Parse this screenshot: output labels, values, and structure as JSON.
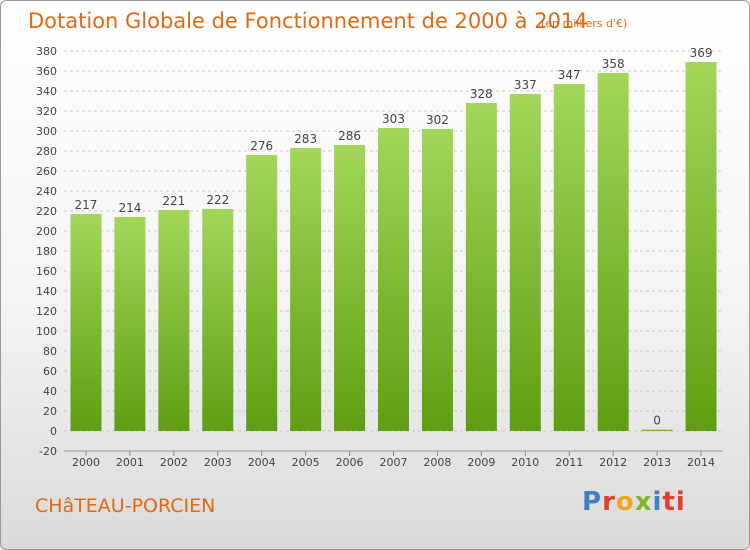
{
  "chart_data": {
    "type": "bar",
    "title": "Dotation Globale de Fonctionnement de 2000 à 2014",
    "unit_label": "(en milliers d'€)",
    "categories": [
      "2000",
      "2001",
      "2002",
      "2003",
      "2004",
      "2005",
      "2006",
      "2007",
      "2008",
      "2009",
      "2010",
      "2011",
      "2012",
      "2013",
      "2014"
    ],
    "values": [
      217,
      214,
      221,
      222,
      276,
      283,
      286,
      303,
      302,
      328,
      337,
      347,
      358,
      0,
      369
    ],
    "ylim": [
      -20,
      380
    ],
    "yticks": [
      -20,
      0,
      20,
      40,
      60,
      80,
      100,
      120,
      140,
      160,
      180,
      200,
      220,
      240,
      260,
      280,
      300,
      320,
      340,
      360,
      380
    ],
    "grid": true,
    "bar_color": "#8cc63f"
  },
  "commune": "CHâTEAU-PORCIEN",
  "logo": {
    "text": "Proxiti",
    "letters": [
      "P",
      "r",
      "o",
      "x",
      "i",
      "ti"
    ]
  }
}
